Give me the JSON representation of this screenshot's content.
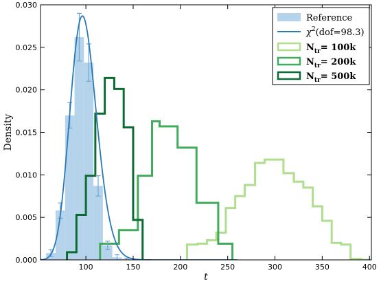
{
  "chart_data": {
    "type": "bar",
    "xlabel": "t",
    "ylabel": "Density",
    "xlim": [
      52,
      402
    ],
    "ylim": [
      0,
      0.03
    ],
    "grid": false,
    "legend_position": "top-right",
    "x_ticks": [
      "100",
      "150",
      "200",
      "250",
      "300",
      "350",
      "400"
    ],
    "x_tick_values": [
      100,
      150,
      200,
      250,
      300,
      350,
      400
    ],
    "y_ticks": [
      "0.000",
      "0.005",
      "0.010",
      "0.015",
      "0.020",
      "0.025",
      "0.030"
    ],
    "y_tick_values": [
      0,
      0.005,
      0.01,
      0.015,
      0.02,
      0.025,
      0.03
    ],
    "reference": {
      "name": "Reference",
      "color": "#9ec4e6",
      "bin_edges": [
        58,
        68,
        78,
        88,
        98,
        108,
        118,
        128,
        138,
        148
      ],
      "values": [
        0.0008,
        0.0058,
        0.017,
        0.0262,
        0.0232,
        0.0087,
        0.0017,
        0.0003,
        0.0001
      ],
      "errors": [
        0.0004,
        0.0009,
        0.0015,
        0.0028,
        0.0022,
        0.0012,
        0.0005,
        0.0003,
        0.0001
      ]
    },
    "chi2_curve": {
      "label_prefix": "χ",
      "label_sup": "2",
      "label_suffix": "(dof=98.3)",
      "color": "#2a78b4",
      "dof": 98.3
    },
    "series": [
      {
        "label_main": "N",
        "label_sub": "tr",
        "label_value": "= 100k",
        "color": "#aede8e",
        "bin_edges": [
          207,
          218,
          228,
          238,
          248,
          258,
          268,
          279,
          289,
          299,
          309,
          320,
          330,
          340,
          350,
          360,
          370,
          380,
          391,
          401
        ],
        "values": [
          0.0018,
          0.0019,
          0.0023,
          0.0032,
          0.0061,
          0.0075,
          0.0088,
          0.0114,
          0.0118,
          0.0118,
          0.0102,
          0.0092,
          0.0085,
          0.0063,
          0.0046,
          0.002,
          0.0018,
          0.0001,
          0
        ]
      },
      {
        "label_main": "N",
        "label_sub": "tr",
        "label_value": "= 200k",
        "color": "#41ab5d",
        "bin_edges": [
          115,
          135,
          155,
          170,
          178,
          197,
          217,
          240,
          255
        ],
        "values": [
          0.0019,
          0.0035,
          0.0099,
          0.0163,
          0.0157,
          0.0132,
          0.0067,
          0.0019
        ]
      },
      {
        "label_main": "N",
        "label_sub": "tr",
        "label_value": "= 500k",
        "color": "#0b6b32",
        "bin_edges": [
          80,
          90,
          100,
          110,
          120,
          130,
          140,
          150,
          160
        ],
        "values": [
          0.0009,
          0.0053,
          0.0099,
          0.0172,
          0.0214,
          0.0201,
          0.0156,
          0.0047
        ]
      }
    ]
  }
}
